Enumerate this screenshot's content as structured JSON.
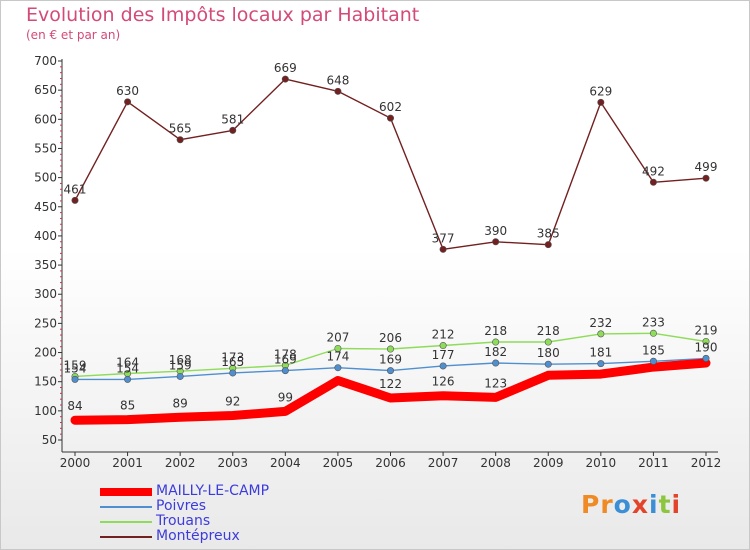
{
  "title": "Evolution des Impôts locaux par Habitant",
  "subtitle": "(en € et par an)",
  "logo": {
    "text": "Proxiti",
    "colors": [
      "#f08a24",
      "#f08a24",
      "#3a8fd6",
      "#e2432a",
      "#3a8fd6",
      "#8cc63f",
      "#e2432a"
    ]
  },
  "chart_data": {
    "type": "line",
    "title": "Evolution des Impôts locaux par Habitant",
    "subtitle": "(en € et par an)",
    "xlabel": "",
    "ylabel": "",
    "x": [
      "2000",
      "2001",
      "2002",
      "2003",
      "2004",
      "2005",
      "2006",
      "2007",
      "2008",
      "2009",
      "2010",
      "2011",
      "2012"
    ],
    "ylim": [
      50,
      700
    ],
    "yticks": [
      "50",
      "100",
      "150",
      "200",
      "250",
      "300",
      "350",
      "400",
      "450",
      "500",
      "550",
      "600",
      "650",
      "700"
    ],
    "grid": false,
    "legend_position": "bottom-left",
    "series": [
      {
        "name": "MAILLY-LE-CAMP",
        "color": "#ff0000",
        "values": [
          84,
          85,
          89,
          92,
          99,
          152,
          122,
          126,
          123,
          161,
          163,
          175,
          182
        ],
        "labels": [
          "84",
          "85",
          "89",
          "92",
          "99",
          "",
          "122",
          "126",
          "123",
          "",
          "",
          "",
          ""
        ]
      },
      {
        "name": "Poivres",
        "color": "#4f8fd0",
        "values": [
          154,
          154,
          159,
          165,
          169,
          174,
          169,
          177,
          182,
          180,
          181,
          185,
          190
        ],
        "labels": [
          "154",
          "154",
          "159",
          "165",
          "169",
          "174",
          "169",
          "177",
          "182",
          "180",
          "181",
          "185",
          "190"
        ]
      },
      {
        "name": "Trouans",
        "color": "#8edc5a",
        "values": [
          159,
          164,
          168,
          173,
          178,
          207,
          206,
          212,
          218,
          218,
          232,
          233,
          219
        ],
        "labels": [
          "159",
          "164",
          "168",
          "173",
          "178",
          "207",
          "206",
          "212",
          "218",
          "218",
          "232",
          "233",
          "219"
        ]
      },
      {
        "name": "Montépreux",
        "color": "#722020",
        "values": [
          461,
          630,
          565,
          581,
          669,
          648,
          602,
          377,
          390,
          385,
          629,
          492,
          499
        ],
        "labels": [
          "461",
          "630",
          "565",
          "581",
          "669",
          "648",
          "602",
          "377",
          "390",
          "385",
          "629",
          "492",
          "499"
        ]
      }
    ]
  }
}
